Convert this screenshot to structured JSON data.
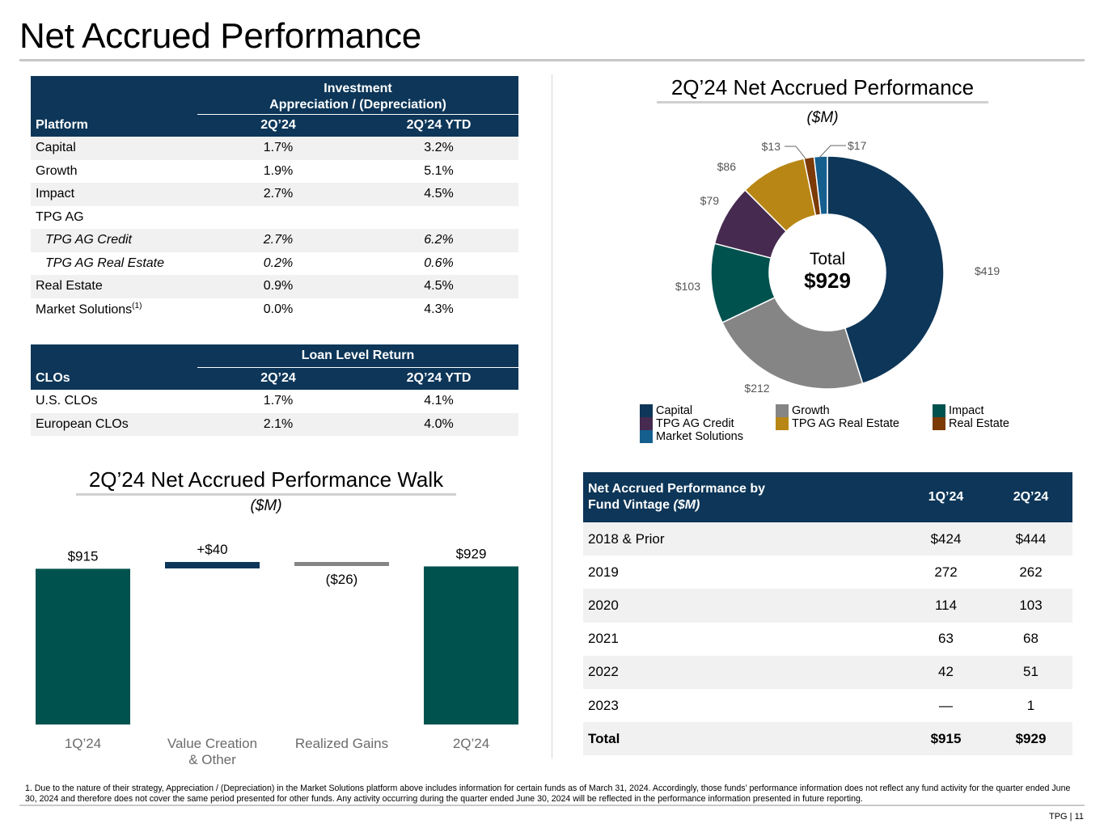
{
  "page": {
    "title": "Net Accrued Performance",
    "footnote": "1. Due to the nature of their strategy, Appreciation / (Depreciation) in the Market Solutions platform above includes information for certain funds as of March 31, 2024. Accordingly, those funds’ performance information does not reflect any fund activity for the quarter ended June 30, 2024 and therefore does not cover the same period presented for other funds. Any activity occurring during the quarter ended June 30, 2024 will be reflected in the performance information presented in future reporting.",
    "page_number": "TPG | 11"
  },
  "platform_table": {
    "group_header_line1": "Investment",
    "group_header_line2": "Appreciation / (Depreciation)",
    "col_platform": "Platform",
    "col_q": "2Q’24",
    "col_ytd": "2Q’24 YTD",
    "rows": [
      {
        "label": "Capital",
        "q": "1.7%",
        "ytd": "3.2%"
      },
      {
        "label": "Growth",
        "q": "1.9%",
        "ytd": "5.1%"
      },
      {
        "label": "Impact",
        "q": "2.7%",
        "ytd": "4.5%"
      },
      {
        "label": "TPG AG",
        "q": "",
        "ytd": ""
      },
      {
        "label": "TPG AG Credit",
        "q": "2.7%",
        "ytd": "6.2%"
      },
      {
        "label": "TPG AG Real Estate",
        "q": "0.2%",
        "ytd": "0.6%"
      },
      {
        "label": "Real Estate",
        "q": "0.9%",
        "ytd": "4.5%"
      },
      {
        "label": "Market Solutions",
        "sup": "(1)",
        "q": "0.0%",
        "ytd": "4.3%"
      }
    ]
  },
  "clo_table": {
    "group_header": "Loan Level Return",
    "col_clos": "CLOs",
    "col_q": "2Q’24",
    "col_ytd": "2Q’24 YTD",
    "rows": [
      {
        "label": "U.S. CLOs",
        "q": "1.7%",
        "ytd": "4.1%"
      },
      {
        "label": "European CLOs",
        "q": "2.1%",
        "ytd": "4.0%"
      }
    ]
  },
  "donut_section": {
    "title": "2Q’24 Net Accrued Performance",
    "unit": "($M)",
    "center_label": "Total",
    "center_value": "$929"
  },
  "walk_section": {
    "title": "2Q’24 Net Accrued Performance Walk",
    "unit": "($M)"
  },
  "vintage_table": {
    "header_line1": "Net Accrued Performance by",
    "header_line2_plain": "Fund Vintage ",
    "header_line2_italic": "($M)",
    "col_1": "1Q’24",
    "col_2": "2Q’24",
    "rows": [
      {
        "label": "2018 & Prior",
        "v1": "$424",
        "v2": "$444"
      },
      {
        "label": "2019",
        "v1": "272",
        "v2": "262"
      },
      {
        "label": "2020",
        "v1": "114",
        "v2": "103"
      },
      {
        "label": "2021",
        "v1": "63",
        "v2": "68"
      },
      {
        "label": "2022",
        "v1": "42",
        "v2": "51"
      },
      {
        "label": "2023",
        "v1": "—",
        "v2": "1"
      },
      {
        "label": "Total",
        "v1": "$915",
        "v2": "$929"
      }
    ]
  },
  "chart_data": [
    {
      "type": "pie",
      "title": "2Q’24 Net Accrued Performance",
      "subtitle": "($M)",
      "donut": true,
      "slices": [
        {
          "name": "Capital",
          "value": 419,
          "label": "$419",
          "color": "#0d3658"
        },
        {
          "name": "Growth",
          "value": 212,
          "label": "$212",
          "color": "#858585"
        },
        {
          "name": "Impact",
          "value": 103,
          "label": "$103",
          "color": "#00524f"
        },
        {
          "name": "TPG AG Credit",
          "value": 79,
          "label": "$79",
          "color": "#472a4f"
        },
        {
          "name": "TPG AG Real Estate",
          "value": 86,
          "label": "$86",
          "color": "#b88614"
        },
        {
          "name": "Real Estate",
          "value": 13,
          "label": "$13",
          "color": "#7b3a06"
        },
        {
          "name": "Market Solutions",
          "value": 17,
          "label": "$17",
          "color": "#155f8f"
        }
      ],
      "legend_order": [
        "Capital",
        "Growth",
        "Impact",
        "TPG AG Credit",
        "TPG AG Real Estate",
        "Real Estate",
        "Market Solutions"
      ],
      "legend_placement": "bottom"
    },
    {
      "type": "bar",
      "subtype": "waterfall",
      "title": "2Q’24 Net Accrued Performance Walk",
      "subtitle": "($M)",
      "categories": [
        "1Q’24",
        "Value Creation & Other",
        "Realized Gains",
        "2Q’24"
      ],
      "category_lines": [
        [
          "1Q’24"
        ],
        [
          "Value Creation",
          "& Other"
        ],
        [
          "Realized Gains"
        ],
        [
          "2Q’24"
        ]
      ],
      "values": [
        915,
        40,
        -26,
        929
      ],
      "labels": [
        "$915",
        "+$40",
        "($26)",
        "$929"
      ],
      "kinds": [
        "total",
        "increase",
        "decrease",
        "total"
      ],
      "colors": [
        "#00524f",
        "#0d3658",
        "#858585",
        "#00524f"
      ],
      "ylim": [
        0,
        955
      ]
    }
  ]
}
